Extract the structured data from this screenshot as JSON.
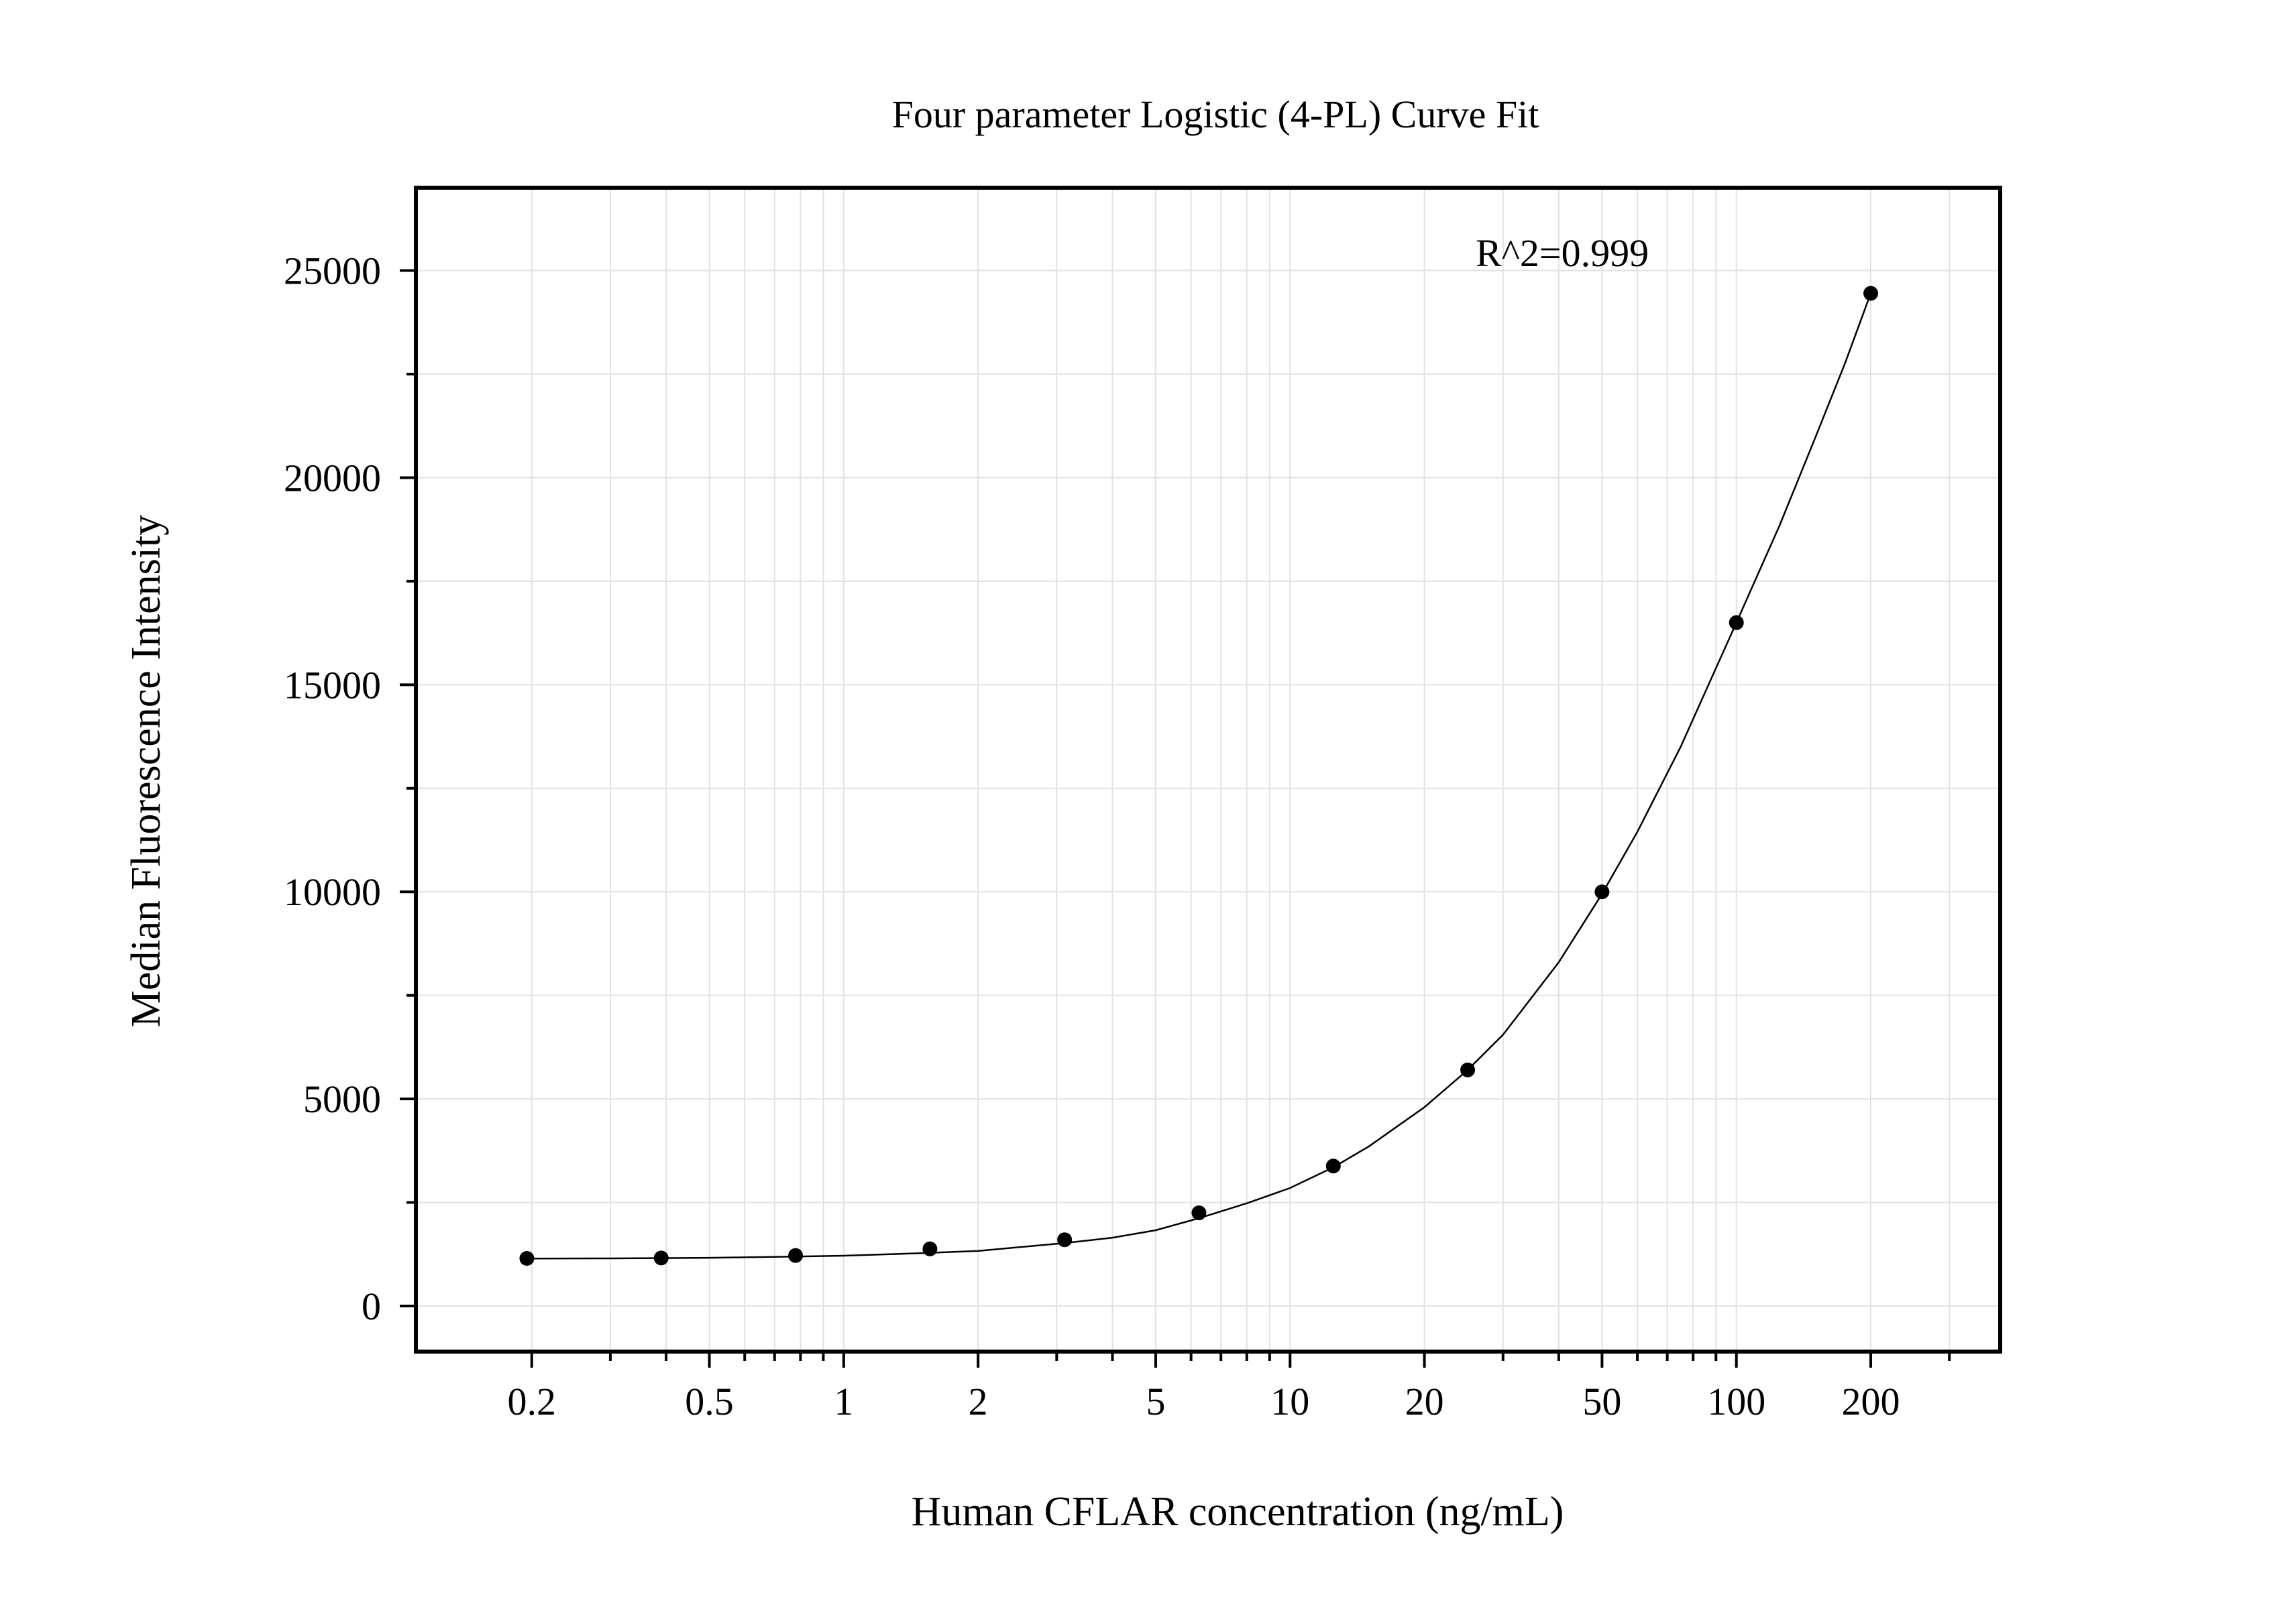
{
  "chart_data": {
    "type": "scatter",
    "title": "Four parameter Logistic (4-PL) Curve Fit",
    "xlabel": "Human CFLAR concentration (ng/mL)",
    "ylabel": "Median Fluorescence Intensity",
    "x_scale": "log",
    "xlim": [
      0.11,
      390
    ],
    "ylim": [
      -1100,
      27000
    ],
    "x_ticks": [
      {
        "value": 0.2,
        "label": "0.2"
      },
      {
        "value": 0.5,
        "label": "0.5"
      },
      {
        "value": 1,
        "label": "1"
      },
      {
        "value": 2,
        "label": "2"
      },
      {
        "value": 5,
        "label": "5"
      },
      {
        "value": 10,
        "label": "10"
      },
      {
        "value": 20,
        "label": "20"
      },
      {
        "value": 50,
        "label": "50"
      },
      {
        "value": 100,
        "label": "100"
      },
      {
        "value": 200,
        "label": "200"
      }
    ],
    "y_ticks": [
      {
        "value": 0,
        "label": "0"
      },
      {
        "value": 5000,
        "label": "5000"
      },
      {
        "value": 10000,
        "label": "10000"
      },
      {
        "value": 15000,
        "label": "15000"
      },
      {
        "value": 20000,
        "label": "20000"
      },
      {
        "value": 25000,
        "label": "25000"
      }
    ],
    "grid": true,
    "annotation": "R^2=0.999",
    "series": [
      {
        "x": [
          0.195,
          0.39,
          0.78,
          1.56,
          3.125,
          6.25,
          12.5,
          25,
          50,
          100,
          200
        ],
        "y": [
          1150,
          1160,
          1220,
          1380,
          1600,
          2250,
          3380,
          5700,
          10000,
          16500,
          24450
        ]
      }
    ],
    "fit": {
      "model": "4-PL",
      "x": [
        0.195,
        0.3,
        0.5,
        0.78,
        1,
        1.56,
        2,
        3.125,
        4,
        5,
        6.25,
        8,
        10,
        12.5,
        15,
        20,
        25,
        30,
        40,
        50,
        60,
        75,
        100,
        125,
        150,
        175,
        200
      ],
      "y": [
        1145,
        1150,
        1165,
        1195,
        1215,
        1285,
        1330,
        1520,
        1650,
        1830,
        2120,
        2480,
        2850,
        3350,
        3850,
        4800,
        5700,
        6550,
        8300,
        9950,
        11450,
        13500,
        16500,
        18850,
        20950,
        22750,
        24450
      ]
    },
    "colors": {
      "point": "#000000",
      "curve": "#000000",
      "grid": "#e2e2e2",
      "frame": "#000000"
    }
  }
}
